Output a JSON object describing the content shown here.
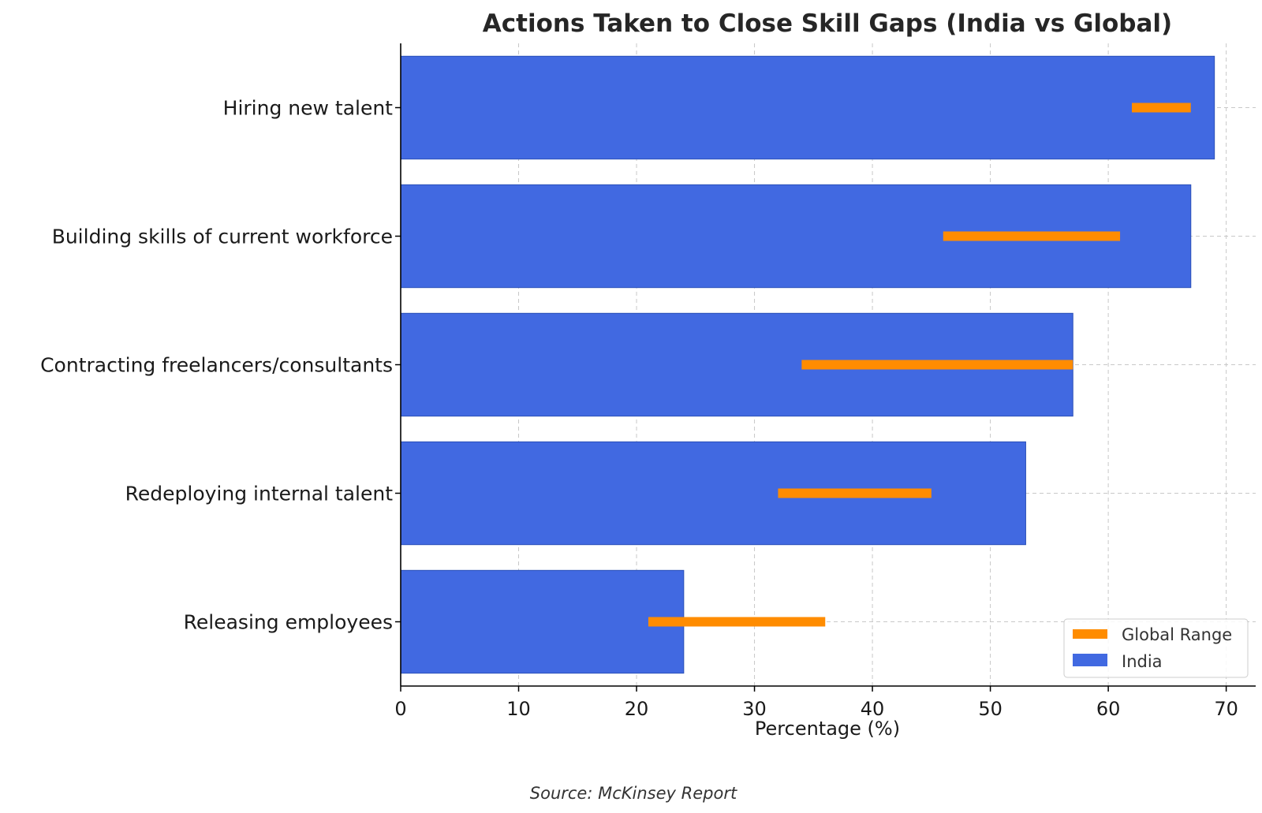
{
  "chart_data": {
    "type": "bar",
    "orientation": "horizontal",
    "title": "Actions Taken to Close Skill Gaps (India vs Global)",
    "xlabel": "Percentage (%)",
    "ylabel": "",
    "xlim": [
      0,
      72.5
    ],
    "xticks": [
      0,
      10,
      20,
      30,
      40,
      50,
      60,
      70
    ],
    "grid": true,
    "legend_position": "bottom-right",
    "source": "Source: McKinsey Report",
    "categories": [
      "Hiring new talent",
      "Building skills of current workforce",
      "Contracting freelancers/consultants",
      "Redeploying internal talent",
      "Releasing employees"
    ],
    "series": [
      {
        "name": "India",
        "type": "bar",
        "color": "#4169e1",
        "values": [
          69,
          67,
          57,
          53,
          24
        ]
      },
      {
        "name": "Global Range",
        "type": "range",
        "color": "#ff8c00",
        "ranges": [
          [
            62,
            67
          ],
          [
            46,
            61
          ],
          [
            34,
            57
          ],
          [
            32,
            45
          ],
          [
            21,
            36
          ]
        ]
      }
    ]
  }
}
